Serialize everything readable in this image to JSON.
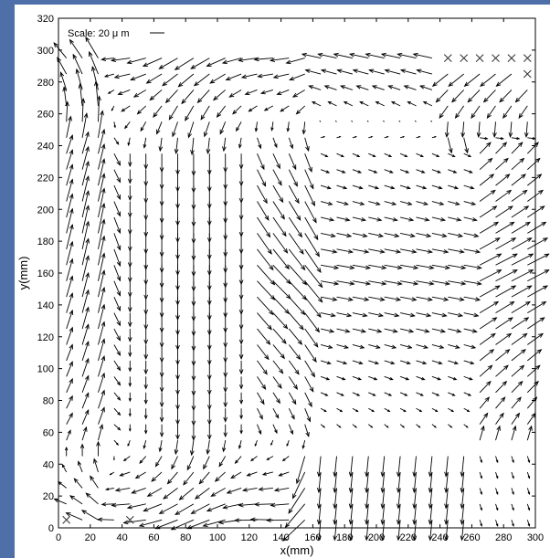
{
  "chart_data": {
    "type": "quiver",
    "title": "",
    "xlabel": "x(mm)",
    "ylabel": "y(mm)",
    "xlim": [
      0,
      300
    ],
    "ylim": [
      0,
      320
    ],
    "xticks": [
      0,
      20,
      40,
      60,
      80,
      100,
      120,
      140,
      160,
      180,
      200,
      220,
      240,
      260,
      280,
      300
    ],
    "yticks": [
      0,
      20,
      40,
      60,
      80,
      100,
      120,
      140,
      160,
      180,
      200,
      220,
      240,
      260,
      280,
      300,
      320
    ],
    "grid": false,
    "scale_label": "Scale: 20 μ m",
    "grid_spacing_mm": 10,
    "grid_x_range": [
      5,
      295
    ],
    "grid_y_range": [
      5,
      295
    ],
    "missing_points": [
      [
        5,
        5
      ],
      [
        45,
        5
      ],
      [
        245,
        295
      ],
      [
        255,
        295
      ],
      [
        265,
        295
      ],
      [
        275,
        295
      ],
      [
        285,
        295
      ],
      [
        295,
        295
      ],
      [
        295,
        285
      ]
    ]
  }
}
